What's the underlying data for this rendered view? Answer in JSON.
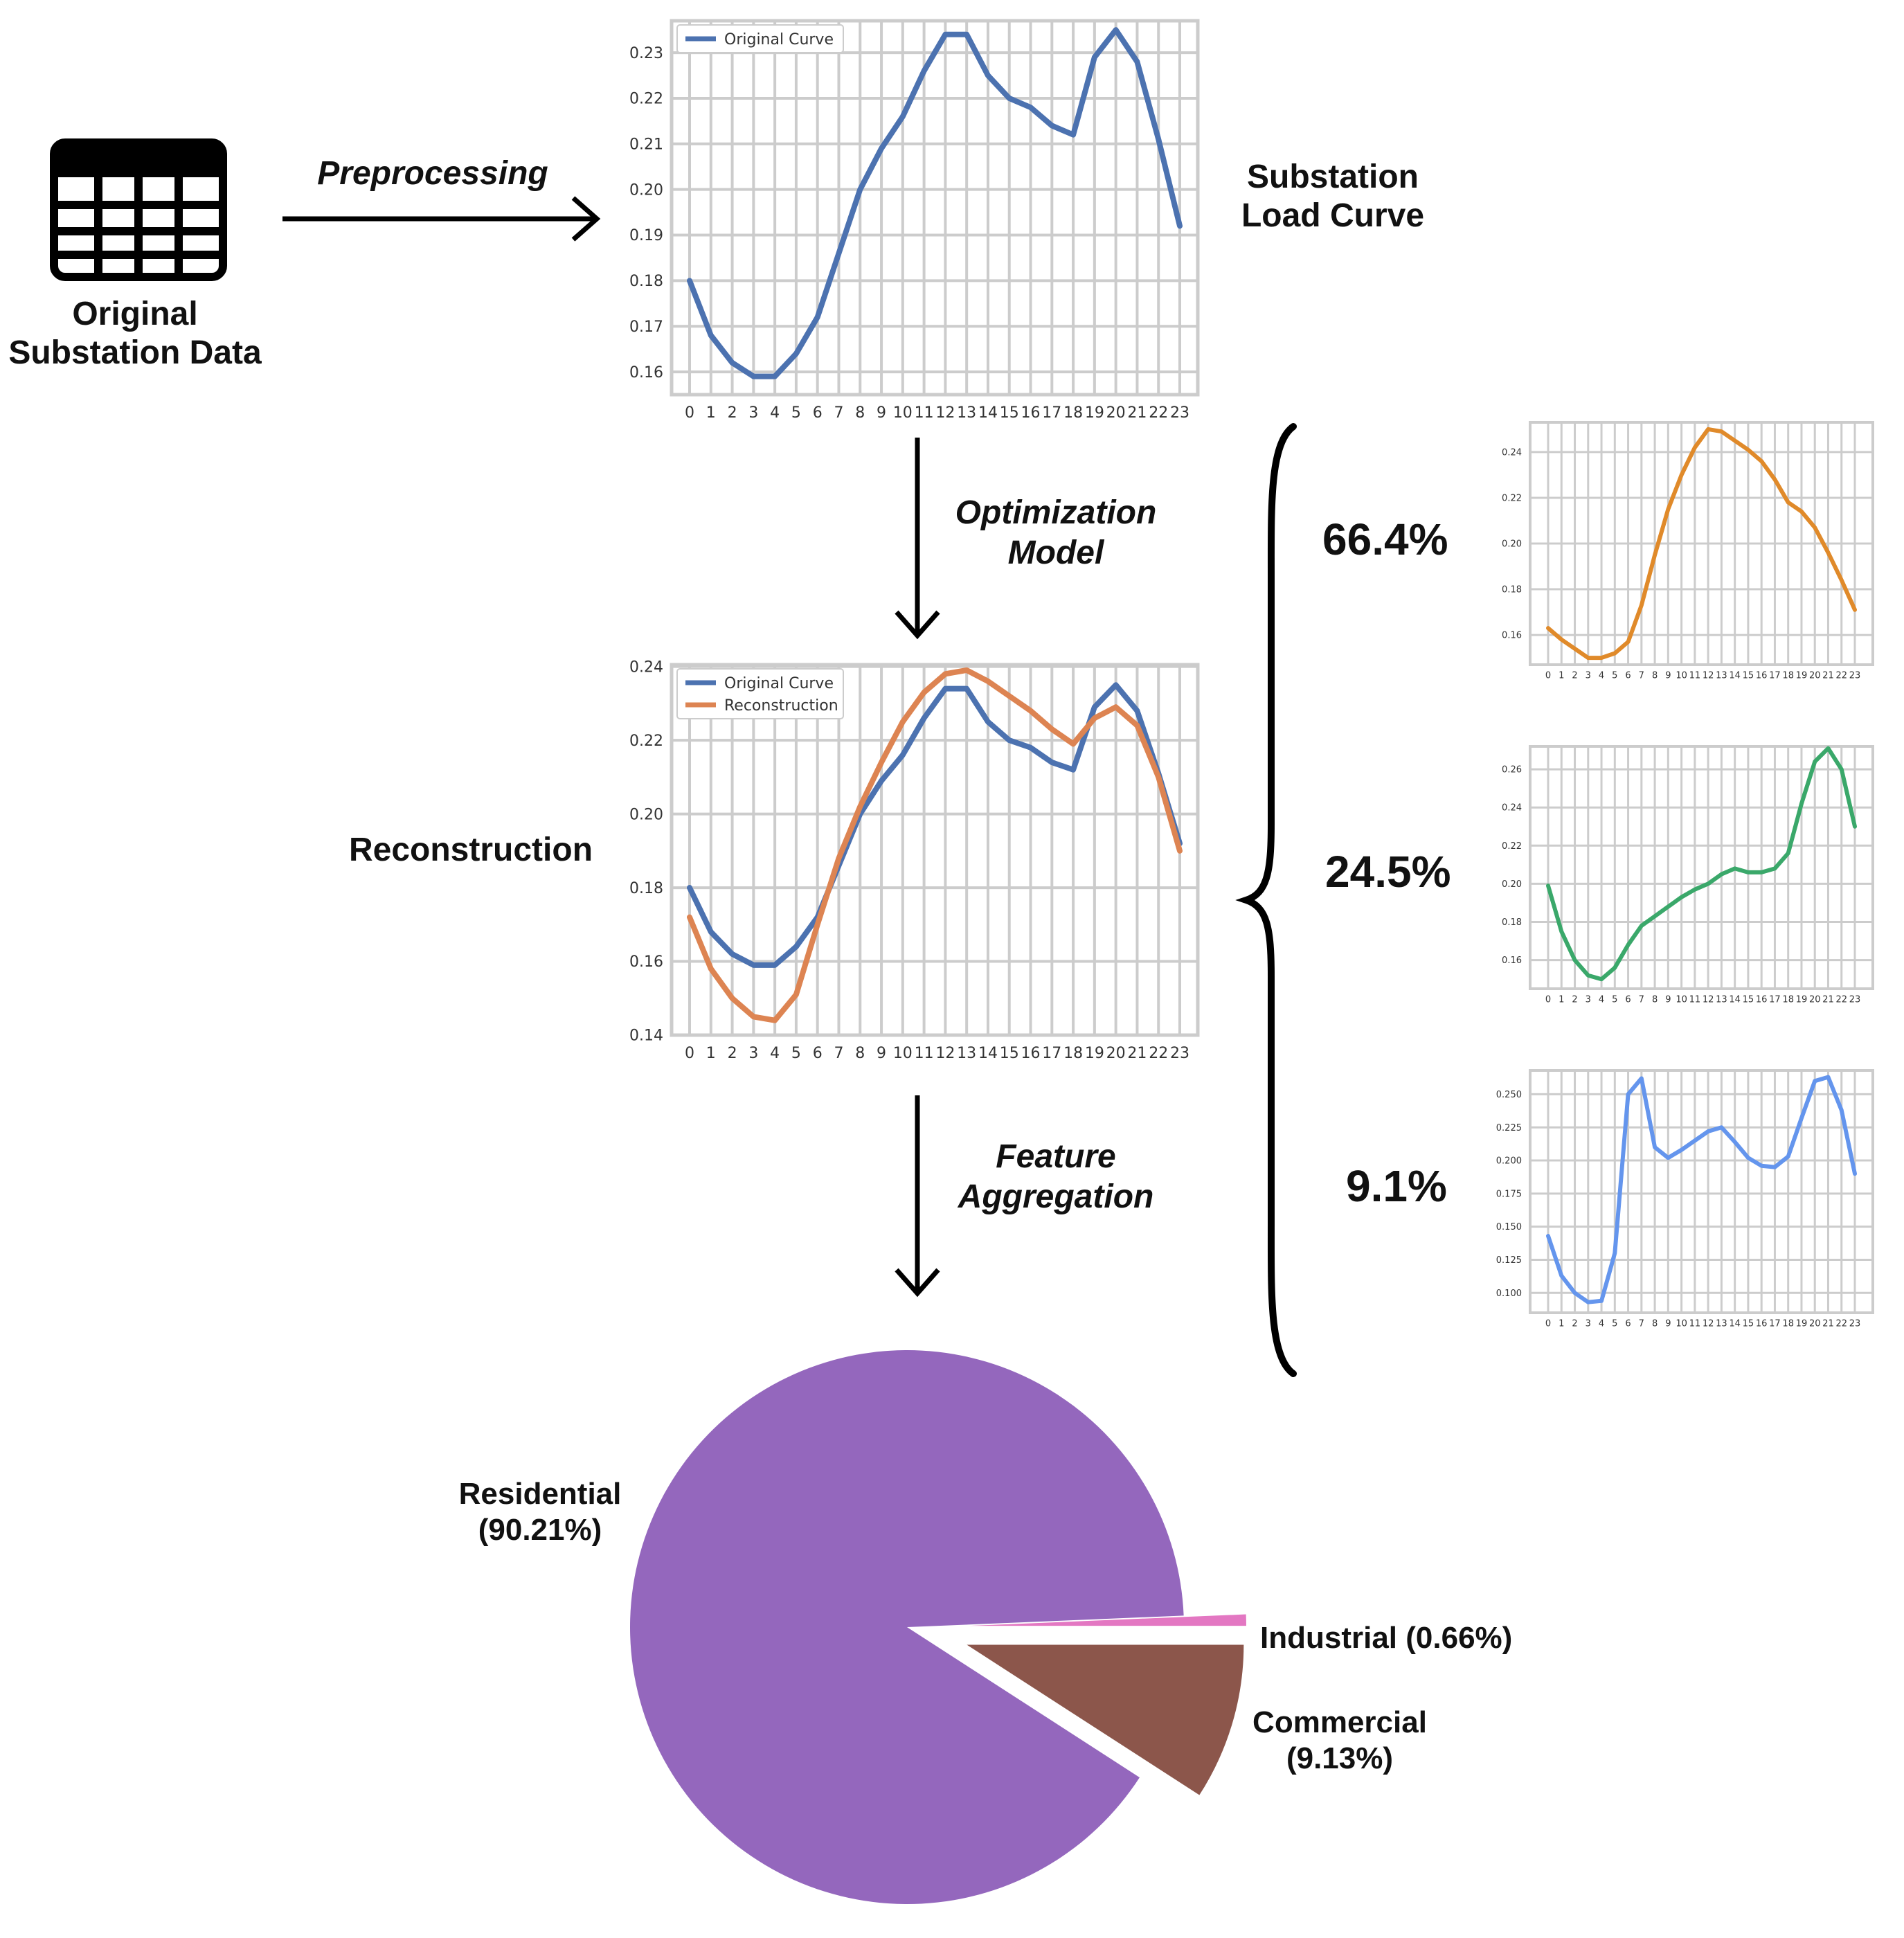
{
  "labels": {
    "original_data_line1": "Original",
    "original_data_line2": "Substation Data",
    "preprocessing": "Preprocessing",
    "substation_curve_line1": "Substation",
    "substation_curve_line2": "Load Curve",
    "optimization_line1": "Optimization",
    "optimization_line2": "Model",
    "reconstruction": "Reconstruction",
    "feature_line1": "Feature",
    "feature_line2": "Aggregation"
  },
  "shares": [
    "66.4%",
    "24.5%",
    "9.1%"
  ],
  "pie_labels": {
    "residential_line1": "Residential",
    "residential_line2": "(90.21%)",
    "industrial": "Industrial (0.66%)",
    "commercial_line1": "Commercial",
    "commercial_line2": "(9.13%)"
  },
  "colors": {
    "original": "#4c72b0",
    "reconstruction": "#dd8452",
    "orange": "#e08a2a",
    "green": "#3aa86a",
    "lightblue": "#6495ed",
    "residential": "#9467bd",
    "commercial": "#8c564b",
    "industrial": "#e377c2",
    "grid": "#cccccc"
  },
  "chart_data": [
    {
      "id": "substation",
      "type": "line",
      "x": [
        0,
        1,
        2,
        3,
        4,
        5,
        6,
        7,
        8,
        9,
        10,
        11,
        12,
        13,
        14,
        15,
        16,
        17,
        18,
        19,
        20,
        21,
        22,
        23
      ],
      "xticks": [
        "0",
        "1",
        "2",
        "3",
        "4",
        "5",
        "6",
        "7",
        "8",
        "9",
        "10",
        "11",
        "12",
        "13",
        "14",
        "15",
        "16",
        "17",
        "18",
        "19",
        "20",
        "21",
        "22",
        "23"
      ],
      "ylim": [
        0.155,
        0.237
      ],
      "yticks": [
        0.16,
        0.17,
        0.18,
        0.19,
        0.2,
        0.21,
        0.22,
        0.23
      ],
      "ytick_labels": [
        "0.16",
        "0.17",
        "0.18",
        "0.19",
        "0.20",
        "0.21",
        "0.22",
        "0.23"
      ],
      "legend": "top-left",
      "series": [
        {
          "name": "Original Curve",
          "color": "#4c72b0",
          "values": [
            0.18,
            0.168,
            0.162,
            0.159,
            0.159,
            0.164,
            0.172,
            0.186,
            0.2,
            0.209,
            0.216,
            0.226,
            0.234,
            0.234,
            0.225,
            0.22,
            0.218,
            0.214,
            0.212,
            0.229,
            0.235,
            0.228,
            0.211,
            0.192
          ]
        }
      ]
    },
    {
      "id": "reconstruction",
      "type": "line",
      "x": [
        0,
        1,
        2,
        3,
        4,
        5,
        6,
        7,
        8,
        9,
        10,
        11,
        12,
        13,
        14,
        15,
        16,
        17,
        18,
        19,
        20,
        21,
        22,
        23
      ],
      "xticks": [
        "0",
        "1",
        "2",
        "3",
        "4",
        "5",
        "6",
        "7",
        "8",
        "9",
        "10",
        "11",
        "12",
        "13",
        "14",
        "15",
        "16",
        "17",
        "18",
        "19",
        "20",
        "21",
        "22",
        "23"
      ],
      "ylim": [
        0.14,
        0.2405
      ],
      "yticks": [
        0.14,
        0.16,
        0.18,
        0.2,
        0.22,
        0.24
      ],
      "ytick_labels": [
        "0.14",
        "0.16",
        "0.18",
        "0.20",
        "0.22",
        "0.24"
      ],
      "legend": "top-left",
      "series": [
        {
          "name": "Original Curve",
          "color": "#4c72b0",
          "values": [
            0.18,
            0.168,
            0.162,
            0.159,
            0.159,
            0.164,
            0.172,
            0.186,
            0.2,
            0.209,
            0.216,
            0.226,
            0.234,
            0.234,
            0.225,
            0.22,
            0.218,
            0.214,
            0.212,
            0.229,
            0.235,
            0.228,
            0.211,
            0.192
          ]
        },
        {
          "name": "Reconstruction",
          "color": "#dd8452",
          "values": [
            0.172,
            0.158,
            0.15,
            0.145,
            0.144,
            0.151,
            0.17,
            0.188,
            0.202,
            0.214,
            0.225,
            0.233,
            0.238,
            0.239,
            0.236,
            0.232,
            0.228,
            0.223,
            0.219,
            0.226,
            0.229,
            0.224,
            0.21,
            0.19
          ]
        }
      ]
    },
    {
      "id": "cluster1",
      "type": "line",
      "x": [
        0,
        1,
        2,
        3,
        4,
        5,
        6,
        7,
        8,
        9,
        10,
        11,
        12,
        13,
        14,
        15,
        16,
        17,
        18,
        19,
        20,
        21,
        22,
        23
      ],
      "xticks": [
        "0",
        "1",
        "2",
        "3",
        "4",
        "5",
        "6",
        "7",
        "8",
        "9",
        "10",
        "11",
        "12",
        "13",
        "14",
        "15",
        "16",
        "17",
        "18",
        "19",
        "20",
        "21",
        "22",
        "23"
      ],
      "ylim": [
        0.147,
        0.253
      ],
      "yticks": [
        0.16,
        0.18,
        0.2,
        0.22,
        0.24
      ],
      "ytick_labels": [
        "0.16",
        "0.18",
        "0.20",
        "0.22",
        "0.24"
      ],
      "series": [
        {
          "name": "",
          "color": "#e08a2a",
          "values": [
            0.163,
            0.158,
            0.154,
            0.15,
            0.15,
            0.152,
            0.157,
            0.173,
            0.195,
            0.215,
            0.23,
            0.242,
            0.25,
            0.249,
            0.245,
            0.241,
            0.236,
            0.228,
            0.218,
            0.214,
            0.207,
            0.196,
            0.184,
            0.171
          ]
        }
      ]
    },
    {
      "id": "cluster2",
      "type": "line",
      "x": [
        0,
        1,
        2,
        3,
        4,
        5,
        6,
        7,
        8,
        9,
        10,
        11,
        12,
        13,
        14,
        15,
        16,
        17,
        18,
        19,
        20,
        21,
        22,
        23
      ],
      "xticks": [
        "0",
        "1",
        "2",
        "3",
        "4",
        "5",
        "6",
        "7",
        "8",
        "9",
        "10",
        "11",
        "12",
        "13",
        "14",
        "15",
        "16",
        "17",
        "18",
        "19",
        "20",
        "21",
        "22",
        "23"
      ],
      "ylim": [
        0.145,
        0.272
      ],
      "yticks": [
        0.16,
        0.18,
        0.2,
        0.22,
        0.24,
        0.26
      ],
      "ytick_labels": [
        "0.16",
        "0.18",
        "0.20",
        "0.22",
        "0.24",
        "0.26"
      ],
      "series": [
        {
          "name": "",
          "color": "#3aa86a",
          "values": [
            0.199,
            0.175,
            0.16,
            0.152,
            0.15,
            0.156,
            0.168,
            0.178,
            0.183,
            0.188,
            0.193,
            0.197,
            0.2,
            0.205,
            0.208,
            0.206,
            0.206,
            0.208,
            0.216,
            0.242,
            0.264,
            0.271,
            0.26,
            0.23
          ]
        }
      ]
    },
    {
      "id": "cluster3",
      "type": "line",
      "x": [
        0,
        1,
        2,
        3,
        4,
        5,
        6,
        7,
        8,
        9,
        10,
        11,
        12,
        13,
        14,
        15,
        16,
        17,
        18,
        19,
        20,
        21,
        22,
        23
      ],
      "xticks": [
        "0",
        "1",
        "2",
        "3",
        "4",
        "5",
        "6",
        "7",
        "8",
        "9",
        "10",
        "11",
        "12",
        "13",
        "14",
        "15",
        "16",
        "17",
        "18",
        "19",
        "20",
        "21",
        "22",
        "23"
      ],
      "ylim": [
        0.085,
        0.268
      ],
      "yticks": [
        0.1,
        0.125,
        0.15,
        0.175,
        0.2,
        0.225,
        0.25
      ],
      "ytick_labels": [
        "0.100",
        "0.125",
        "0.150",
        "0.175",
        "0.200",
        "0.225",
        "0.250"
      ],
      "series": [
        {
          "name": "",
          "color": "#6495ed",
          "values": [
            0.143,
            0.113,
            0.1,
            0.093,
            0.094,
            0.13,
            0.25,
            0.262,
            0.21,
            0.202,
            0.208,
            0.215,
            0.222,
            0.225,
            0.214,
            0.202,
            0.196,
            0.195,
            0.203,
            0.232,
            0.26,
            0.263,
            0.238,
            0.19
          ]
        }
      ]
    },
    {
      "id": "pie",
      "type": "pie",
      "categories": [
        "Residential",
        "Commercial",
        "Industrial"
      ],
      "values": [
        90.21,
        9.13,
        0.66
      ],
      "colors": [
        "#9467bd",
        "#8c564b",
        "#e377c2"
      ]
    }
  ]
}
